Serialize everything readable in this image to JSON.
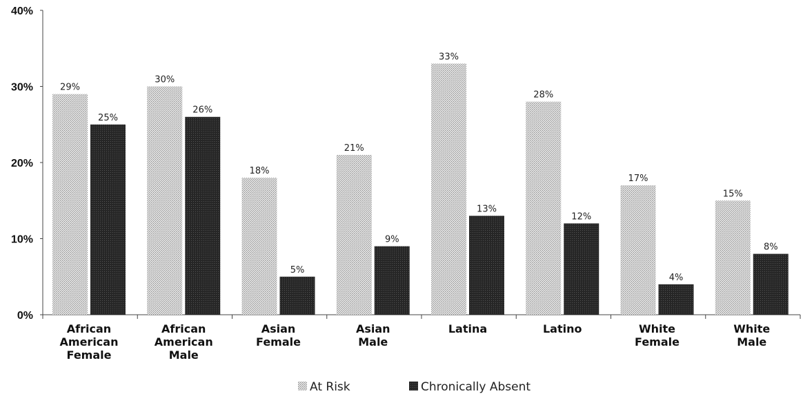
{
  "chart_data": {
    "type": "bar",
    "categories": [
      [
        "African",
        "American",
        "Female"
      ],
      [
        "African",
        "American",
        "Male"
      ],
      [
        "Asian",
        "Female"
      ],
      [
        "Asian",
        "Male"
      ],
      [
        "Latina"
      ],
      [
        "Latino"
      ],
      [
        "White",
        "Female"
      ],
      [
        "White",
        "Male"
      ]
    ],
    "series": [
      {
        "name": "At Risk",
        "values": [
          29,
          30,
          18,
          21,
          33,
          28,
          17,
          15
        ],
        "color": "#cfcfcf"
      },
      {
        "name": "Chronically Absent",
        "values": [
          25,
          26,
          5,
          9,
          13,
          12,
          4,
          8
        ],
        "color": "#2b2b2b"
      }
    ],
    "data_labels": [
      [
        "29%",
        "30%",
        "18%",
        "21%",
        "33%",
        "28%",
        "17%",
        "15%"
      ],
      [
        "25%",
        "26%",
        "5%",
        "9%",
        "13%",
        "12%",
        "4%",
        "8%"
      ]
    ],
    "yticks": [
      "0%",
      "10%",
      "20%",
      "30%",
      "40%"
    ],
    "ylim": [
      0,
      40
    ],
    "grid": false,
    "legend_position": "bottom"
  }
}
